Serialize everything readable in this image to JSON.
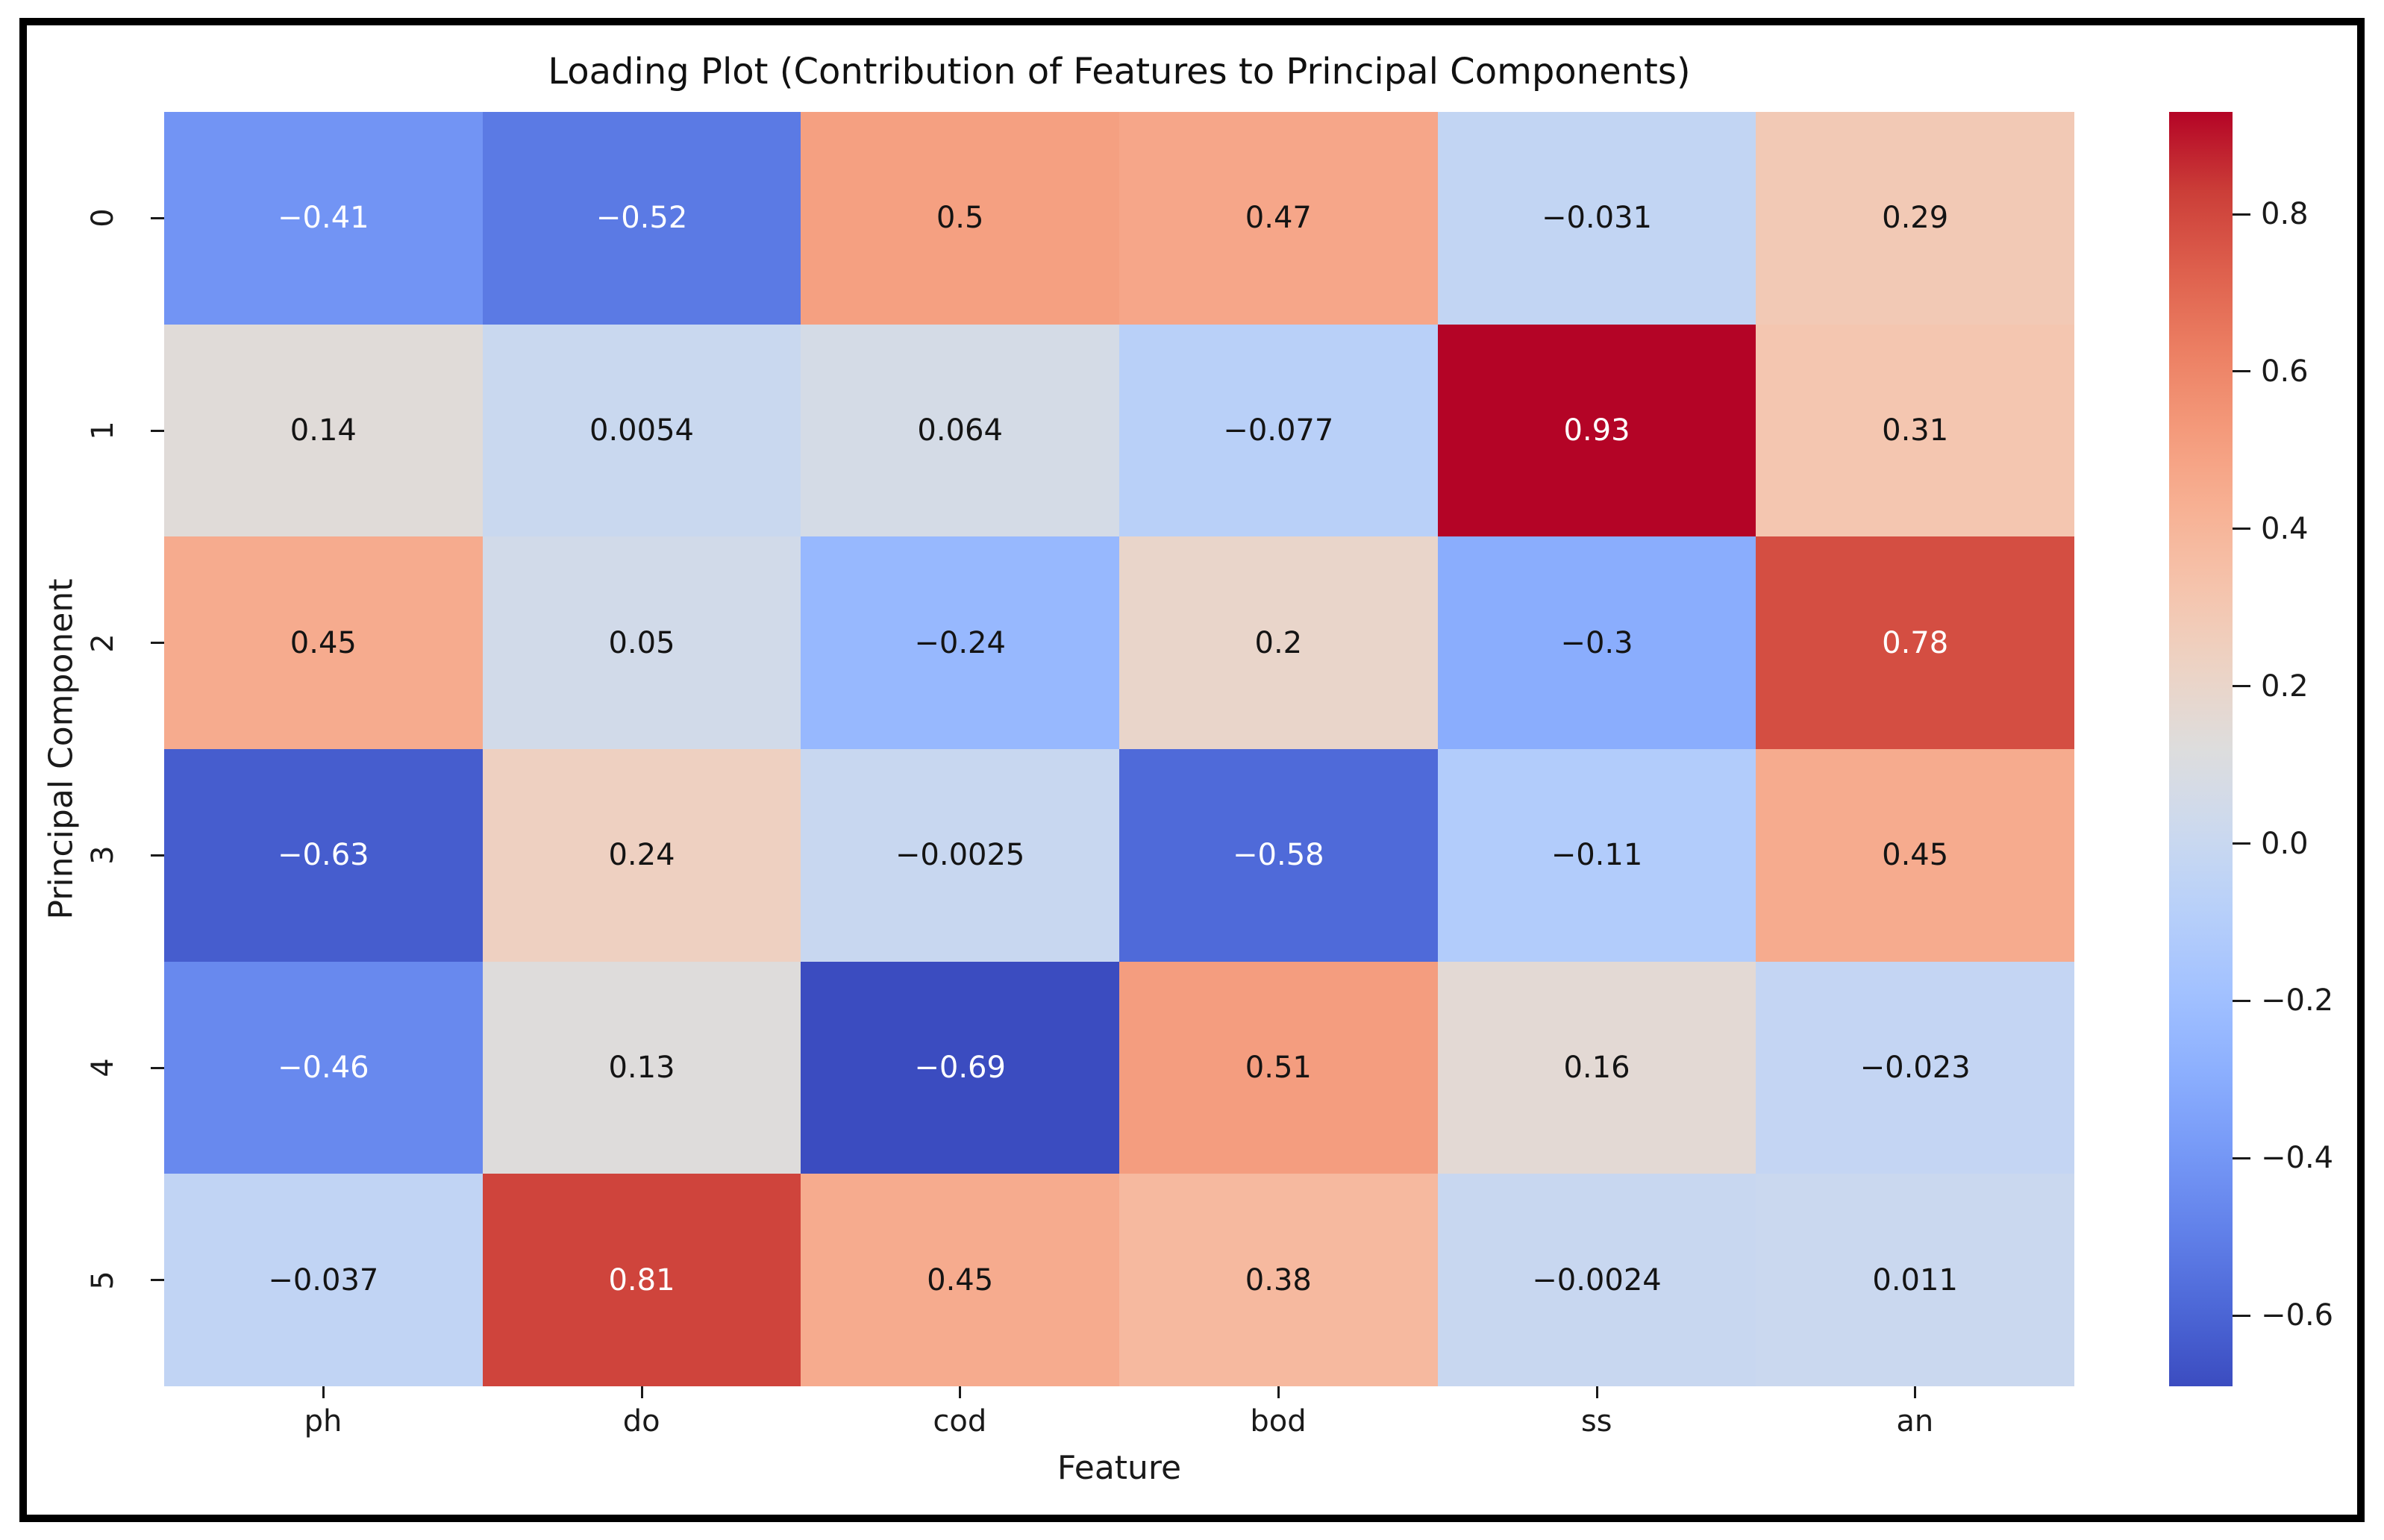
{
  "figure": {
    "title": "Loading Plot (Contribution of Features to Principal Components)",
    "xlabel": "Feature",
    "ylabel": "Principal Component"
  },
  "chart_data": {
    "type": "heatmap",
    "title": "Loading Plot (Contribution of Features to Principal Components)",
    "xlabel": "Feature",
    "ylabel": "Principal Component",
    "x_categories": [
      "ph",
      "do",
      "cod",
      "bod",
      "ss",
      "an"
    ],
    "y_categories": [
      "0",
      "1",
      "2",
      "3",
      "4",
      "5"
    ],
    "values": [
      [
        -0.41,
        -0.52,
        0.5,
        0.47,
        -0.031,
        0.29
      ],
      [
        0.14,
        0.0054,
        0.064,
        -0.077,
        0.93,
        0.31
      ],
      [
        0.45,
        0.05,
        -0.24,
        0.2,
        -0.3,
        0.78
      ],
      [
        -0.63,
        0.24,
        -0.0025,
        -0.58,
        -0.11,
        0.45
      ],
      [
        -0.46,
        0.13,
        -0.69,
        0.51,
        0.16,
        -0.023
      ],
      [
        -0.037,
        0.81,
        0.45,
        0.38,
        -0.0024,
        0.011
      ]
    ],
    "cell_labels": [
      [
        "−0.41",
        "−0.52",
        "0.5",
        "0.47",
        "−0.031",
        "0.29"
      ],
      [
        "0.14",
        "0.0054",
        "0.064",
        "−0.077",
        "0.93",
        "0.31"
      ],
      [
        "0.45",
        "0.05",
        "−0.24",
        "0.2",
        "−0.3",
        "0.78"
      ],
      [
        "−0.63",
        "0.24",
        "−0.0025",
        "−0.58",
        "−0.11",
        "0.45"
      ],
      [
        "−0.46",
        "0.13",
        "−0.69",
        "0.51",
        "0.16",
        "−0.023"
      ],
      [
        "−0.037",
        "0.81",
        "0.45",
        "0.38",
        "−0.0024",
        "0.011"
      ]
    ],
    "colormap": "coolwarm",
    "vmin": -0.69,
    "vmax": 0.93,
    "colorbar_ticks": [
      0.8,
      0.6,
      0.4,
      0.2,
      0.0,
      -0.2,
      -0.4,
      -0.6
    ],
    "colorbar_tick_labels": [
      "0.8",
      "0.6",
      "0.4",
      "0.2",
      "0.0",
      "−0.2",
      "−0.4",
      "−0.6"
    ],
    "legend_position": "colorbar-right",
    "grid": false,
    "cell_text_colors": {
      "light": "#ffffff",
      "dark": "#141414"
    }
  }
}
